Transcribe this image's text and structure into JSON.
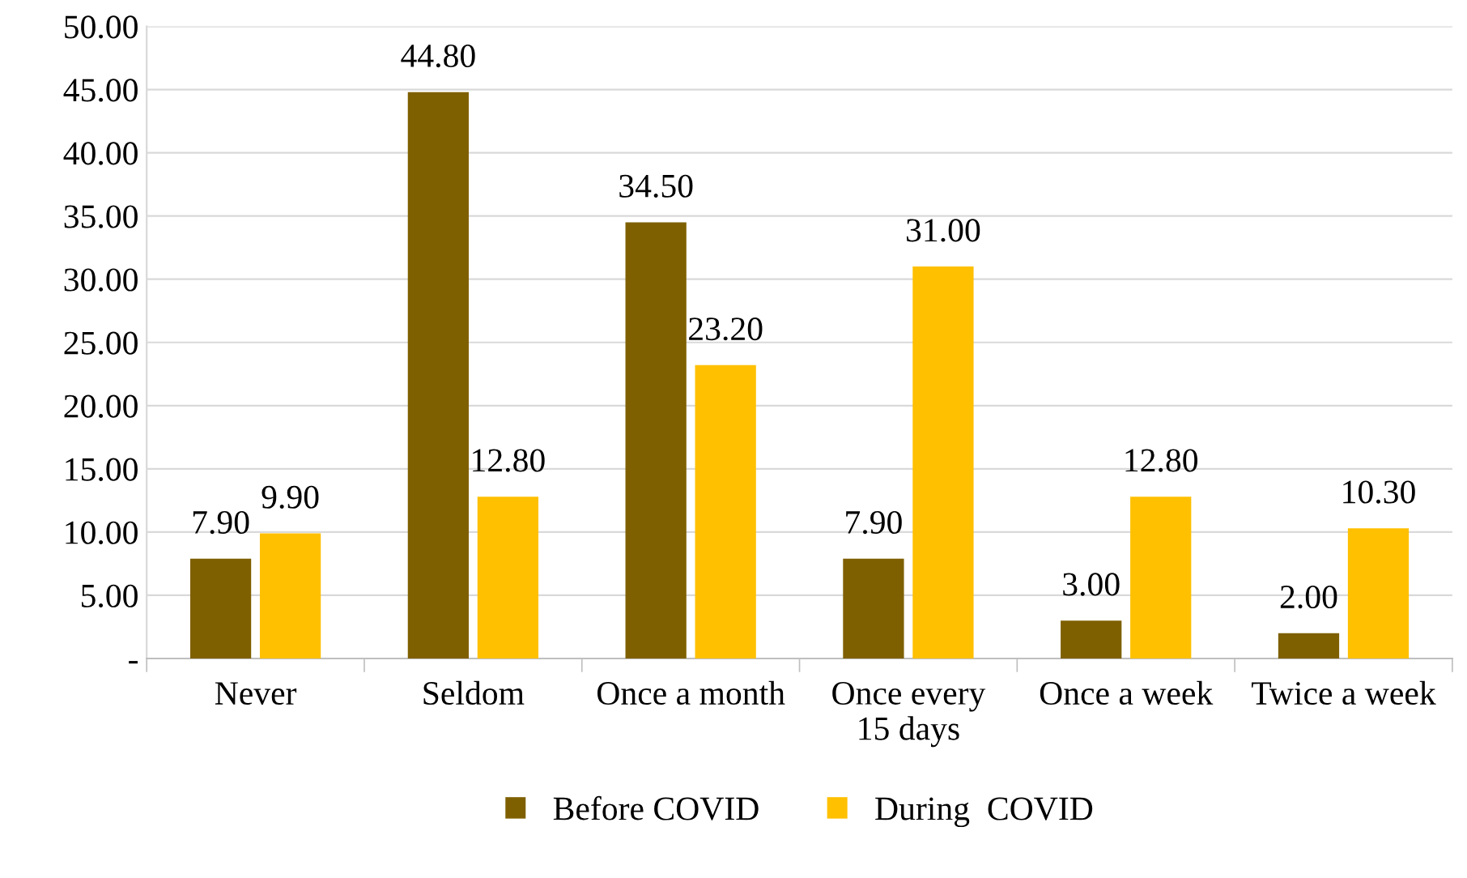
{
  "chart_data": {
    "type": "bar",
    "categories": [
      "Never",
      "Seldom",
      "Once a month",
      "Once every\n15 days",
      "Once a week",
      "Twice a week"
    ],
    "series": [
      {
        "name": "Before COVID",
        "color": "#7f6000",
        "values": [
          7.9,
          44.8,
          34.5,
          7.9,
          3.0,
          2.0
        ],
        "value_labels": [
          "7.90",
          "44.80",
          "34.50",
          "7.90",
          "3.00",
          "2.00"
        ]
      },
      {
        "name": "During  COVID",
        "color": "#ffc000",
        "values": [
          9.9,
          12.8,
          23.2,
          31.0,
          12.8,
          10.3
        ],
        "value_labels": [
          "9.90",
          "12.80",
          "23.20",
          "31.00",
          "12.80",
          "10.30"
        ]
      }
    ],
    "ylim": [
      0,
      50
    ],
    "yticks": [
      {
        "value": 0,
        "label": "-"
      },
      {
        "value": 5,
        "label": "5.00"
      },
      {
        "value": 10,
        "label": "10.00"
      },
      {
        "value": 15,
        "label": "15.00"
      },
      {
        "value": 20,
        "label": "20.00"
      },
      {
        "value": 25,
        "label": "25.00"
      },
      {
        "value": 30,
        "label": "30.00"
      },
      {
        "value": 35,
        "label": "35.00"
      },
      {
        "value": 40,
        "label": "40.00"
      },
      {
        "value": 45,
        "label": "45.00"
      },
      {
        "value": 50,
        "label": "50.00"
      }
    ],
    "grid": "y",
    "legend": "bottom"
  }
}
